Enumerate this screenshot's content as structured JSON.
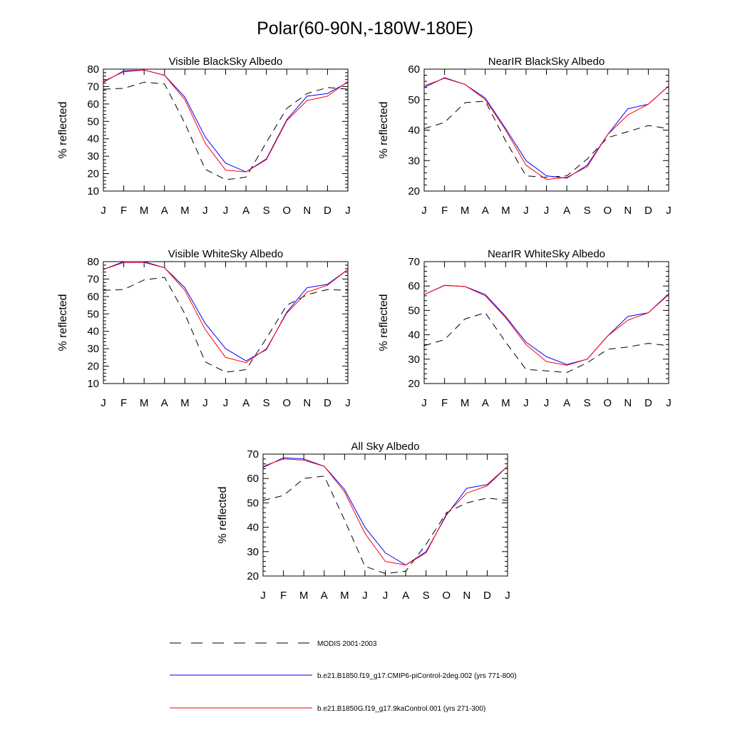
{
  "figure_title": "Polar(60-90N,-180W-180E)",
  "colors": {
    "modis": "#000000",
    "cmip6": "#0000ff",
    "ka9": "#ff0000"
  },
  "legend": [
    {
      "key": "modis",
      "label": "MODIS 2001-2003",
      "dash": true
    },
    {
      "key": "cmip6",
      "label": "b.e21.B1850.f19_g17.CMIP6-piControl-2deg.002 (yrs 771-800)",
      "dash": false
    },
    {
      "key": "ka9",
      "label": "b.e21.B1850G.f19_g17.9kaControl.001 (yrs 271-300)",
      "dash": false
    }
  ],
  "chart_data": [
    {
      "id": "vis-black",
      "type": "line",
      "title": "Visible BlackSky Albedo",
      "xlabel": "",
      "ylabel": "% reflected",
      "categories": [
        "J",
        "F",
        "M",
        "A",
        "M",
        "J",
        "J",
        "A",
        "S",
        "O",
        "N",
        "D",
        "J"
      ],
      "ylim": [
        10,
        80
      ],
      "yticks": [
        10,
        20,
        30,
        40,
        50,
        60,
        70,
        80
      ],
      "series": [
        {
          "key": "modis",
          "name": "MODIS 2001-2003",
          "values": [
            68.5,
            69,
            72.5,
            71.5,
            49,
            22.5,
            16.5,
            18,
            38,
            57.5,
            66,
            69.5,
            68.5
          ]
        },
        {
          "key": "cmip6",
          "name": "b.e21.B1850.f19_g17.CMIP6-piControl-2deg.002 (yrs 771-800)",
          "values": [
            72.5,
            79,
            79.5,
            76.5,
            64,
            41,
            26,
            21,
            28.5,
            51,
            64.5,
            66,
            72.5
          ]
        },
        {
          "key": "ka9",
          "name": "b.e21.B1850G.f19_g17.9kaControl.001 (yrs 271-300)",
          "values": [
            73,
            78.5,
            79.5,
            76.5,
            62.5,
            37.5,
            22,
            21,
            28,
            50.5,
            62,
            64.5,
            73
          ]
        }
      ]
    },
    {
      "id": "nir-black",
      "type": "line",
      "title": "NearIR BlackSky Albedo",
      "xlabel": "",
      "ylabel": "% reflected",
      "categories": [
        "J",
        "F",
        "M",
        "A",
        "M",
        "J",
        "J",
        "A",
        "S",
        "O",
        "N",
        "D",
        "J"
      ],
      "ylim": [
        20,
        60
      ],
      "yticks": [
        20,
        30,
        40,
        50,
        60
      ],
      "series": [
        {
          "key": "modis",
          "name": "MODIS 2001-2003",
          "values": [
            40.5,
            42.5,
            49,
            49.5,
            36.5,
            25,
            24.5,
            25,
            30.5,
            37.5,
            39.5,
            41.5,
            40.5
          ]
        },
        {
          "key": "cmip6",
          "name": "b.e21.B1850.f19_g17.CMIP6-piControl-2deg.002 (yrs 771-800)",
          "values": [
            54,
            57.2,
            55,
            50.5,
            40.5,
            30,
            25,
            24.2,
            28.5,
            38.5,
            47,
            48.5,
            54.5
          ]
        },
        {
          "key": "ka9",
          "name": "b.e21.B1850G.f19_g17.9kaControl.001 (yrs 271-300)",
          "values": [
            54.5,
            57,
            55,
            50,
            40,
            28.5,
            23.8,
            24.5,
            28,
            38.5,
            45,
            48.5,
            54.5
          ]
        }
      ]
    },
    {
      "id": "vis-white",
      "type": "line",
      "title": "Visible WhiteSky Albedo",
      "xlabel": "",
      "ylabel": "% reflected",
      "categories": [
        "J",
        "F",
        "M",
        "A",
        "M",
        "J",
        "J",
        "A",
        "S",
        "O",
        "N",
        "D",
        "J"
      ],
      "ylim": [
        10,
        80
      ],
      "yticks": [
        10,
        20,
        30,
        40,
        50,
        60,
        70,
        80
      ],
      "series": [
        {
          "key": "modis",
          "name": "MODIS 2001-2003",
          "values": [
            63.5,
            64,
            69.5,
            71,
            50,
            22.5,
            16.5,
            18,
            36,
            55,
            61,
            64,
            63.5
          ]
        },
        {
          "key": "cmip6",
          "name": "b.e21.B1850.f19_g17.CMIP6-piControl-2deg.002 (yrs 771-800)",
          "values": [
            75.5,
            80,
            80,
            76.5,
            65,
            44.5,
            30,
            23,
            29.5,
            51,
            65,
            67,
            75.5
          ]
        },
        {
          "key": "ka9",
          "name": "b.e21.B1850G.f19_g17.9kaControl.001 (yrs 271-300)",
          "values": [
            75.5,
            79.5,
            79.5,
            76.5,
            63.5,
            41,
            25,
            22,
            30,
            50.5,
            62.5,
            66.5,
            75.5
          ]
        }
      ]
    },
    {
      "id": "nir-white",
      "type": "line",
      "title": "NearIR WhiteSky Albedo",
      "xlabel": "",
      "ylabel": "% reflected",
      "categories": [
        "J",
        "F",
        "M",
        "A",
        "M",
        "J",
        "J",
        "A",
        "S",
        "O",
        "N",
        "D",
        "J"
      ],
      "ylim": [
        20,
        70
      ],
      "yticks": [
        20,
        30,
        40,
        50,
        60,
        70
      ],
      "series": [
        {
          "key": "modis",
          "name": "MODIS 2001-2003",
          "values": [
            35.5,
            38,
            46.5,
            49,
            37,
            25.8,
            25.2,
            24.5,
            28.5,
            34,
            35,
            36.5,
            35.5
          ]
        },
        {
          "key": "cmip6",
          "name": "b.e21.B1850.f19_g17.CMIP6-piControl-2deg.002 (yrs 771-800)",
          "values": [
            56.5,
            60.3,
            59.8,
            56.5,
            47.5,
            37,
            31,
            27.8,
            30,
            39.5,
            47.5,
            49,
            56.8
          ]
        },
        {
          "key": "ka9",
          "name": "b.e21.B1850G.f19_g17.9kaControl.001 (yrs 271-300)",
          "values": [
            56.5,
            60.2,
            59.8,
            56,
            47,
            36,
            29,
            27.5,
            30,
            39.5,
            46,
            49,
            56.5
          ]
        }
      ]
    },
    {
      "id": "all-sky",
      "type": "line",
      "title": "All Sky Albedo",
      "xlabel": "",
      "ylabel": "% reflected",
      "categories": [
        "J",
        "F",
        "M",
        "A",
        "M",
        "J",
        "J",
        "A",
        "S",
        "O",
        "N",
        "D",
        "J"
      ],
      "ylim": [
        20,
        70
      ],
      "yticks": [
        20,
        30,
        40,
        50,
        60,
        70
      ],
      "series": [
        {
          "key": "modis",
          "name": "MODIS 2001-2003",
          "values": [
            51,
            53,
            60,
            61,
            43,
            24,
            21,
            22,
            33,
            46,
            50,
            52,
            51
          ]
        },
        {
          "key": "cmip6",
          "name": "b.e21.B1850.f19_g17.CMIP6-piControl-2deg.002 (yrs 771-800)",
          "values": [
            64.5,
            68.5,
            68,
            65,
            55.5,
            40,
            29.5,
            24.5,
            30,
            45,
            56,
            57.5,
            65
          ]
        },
        {
          "key": "ka9",
          "name": "b.e21.B1850G.f19_g17.9kaControl.001 (yrs 271-300)",
          "values": [
            65,
            68,
            67.5,
            65,
            54.5,
            37.5,
            26,
            24.5,
            29.5,
            45.5,
            54,
            57,
            65
          ]
        }
      ]
    }
  ]
}
